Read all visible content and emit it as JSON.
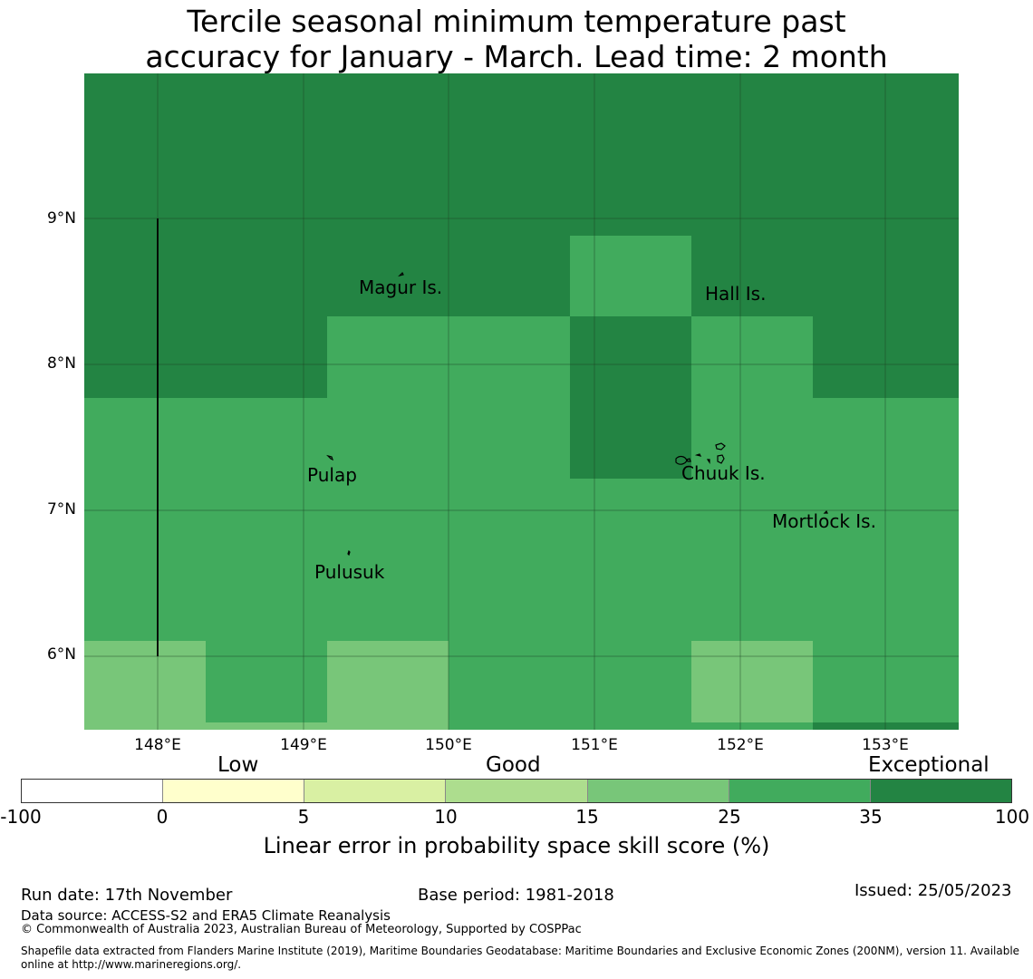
{
  "title": {
    "line1": "Tercile seasonal minimum temperature past",
    "line2": "accuracy for January - March. Lead time: 2 month"
  },
  "map": {
    "lat_labels": [
      "9°N",
      "8°N",
      "7°N",
      "6°N"
    ],
    "lon_labels": [
      "148°E",
      "149°E",
      "150°E",
      "151°E",
      "152°E",
      "153°E"
    ],
    "places": [
      {
        "name": "Magur Is.",
        "lon": 149.45,
        "lat": 8.5
      },
      {
        "name": "Hall Is.",
        "lon": 151.9,
        "lat": 8.45
      },
      {
        "name": "Pulap",
        "lon": 149.2,
        "lat": 7.25
      },
      {
        "name": "Chuuk Is.",
        "lon": 151.85,
        "lat": 7.25
      },
      {
        "name": "Mortlock Is.",
        "lon": 152.6,
        "lat": 6.9
      },
      {
        "name": "Pulusuk",
        "lon": 149.3,
        "lat": 6.6
      }
    ]
  },
  "colorbar": {
    "categories": [
      "Low",
      "Good",
      "Exceptional"
    ],
    "ticks": [
      "-100",
      "0",
      "5",
      "10",
      "15",
      "25",
      "35",
      "100"
    ],
    "colors": [
      "#ffffff",
      "#ffffcc",
      "#d9f0a3",
      "#addd8e",
      "#78c679",
      "#41ab5d",
      "#238443"
    ],
    "label": "Linear error in probability space skill score (%)"
  },
  "footer": {
    "run_date": "Run date: 17th November",
    "base_period": "Base period: 1981-2018",
    "issued": "Issued: 25/05/2023",
    "data_source": "Data source: ACCESS-S2 and ERA5 Climate Reanalysis",
    "copyright": "© Commonwealth of Australia 2023, Australian Bureau of Meteorology, Supported by COSPPac",
    "shapefile_line1": "Shapefile data extracted from Flanders Marine Institute (2019), Maritime Boundaries Geodatabase: Maritime Boundaries and Exclusive Economic Zones (200NM), version 11. Available",
    "shapefile_line2": "online at http://www.marineregions.org/."
  }
}
